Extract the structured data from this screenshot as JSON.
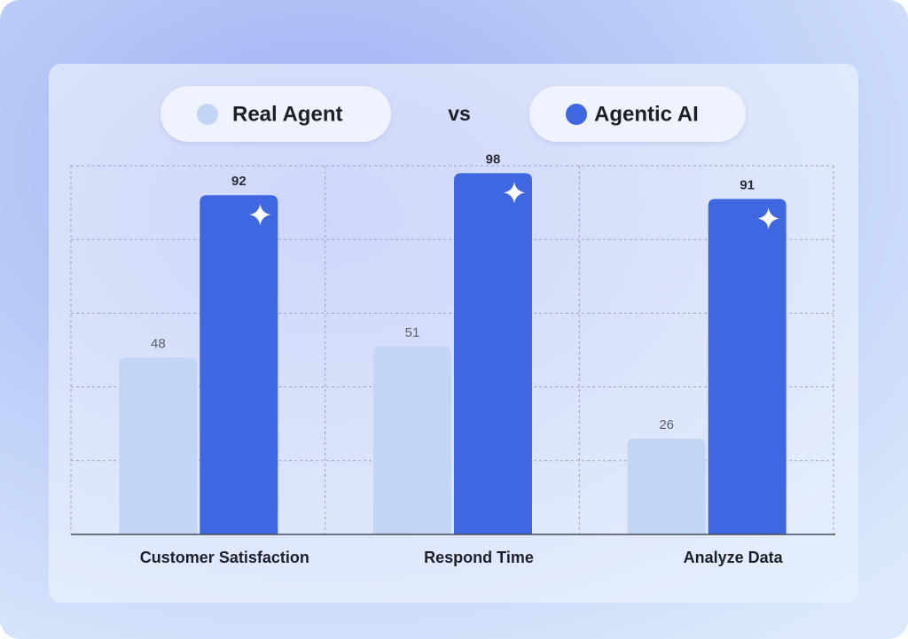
{
  "chart_data": {
    "type": "bar",
    "categories": [
      "Customer Satisfaction",
      "Respond Time",
      "Analyze Data"
    ],
    "series": [
      {
        "name": "Real Agent",
        "color": "#c2d5f5",
        "values": [
          48,
          51,
          26
        ]
      },
      {
        "name": "Agentic AI",
        "color": "#3f67df",
        "values": [
          92,
          98,
          91
        ]
      }
    ],
    "legend_separator": "vs",
    "ylim": [
      0,
      100
    ],
    "yticks": [
      0,
      20,
      40,
      60,
      80,
      100
    ],
    "grid": true
  }
}
